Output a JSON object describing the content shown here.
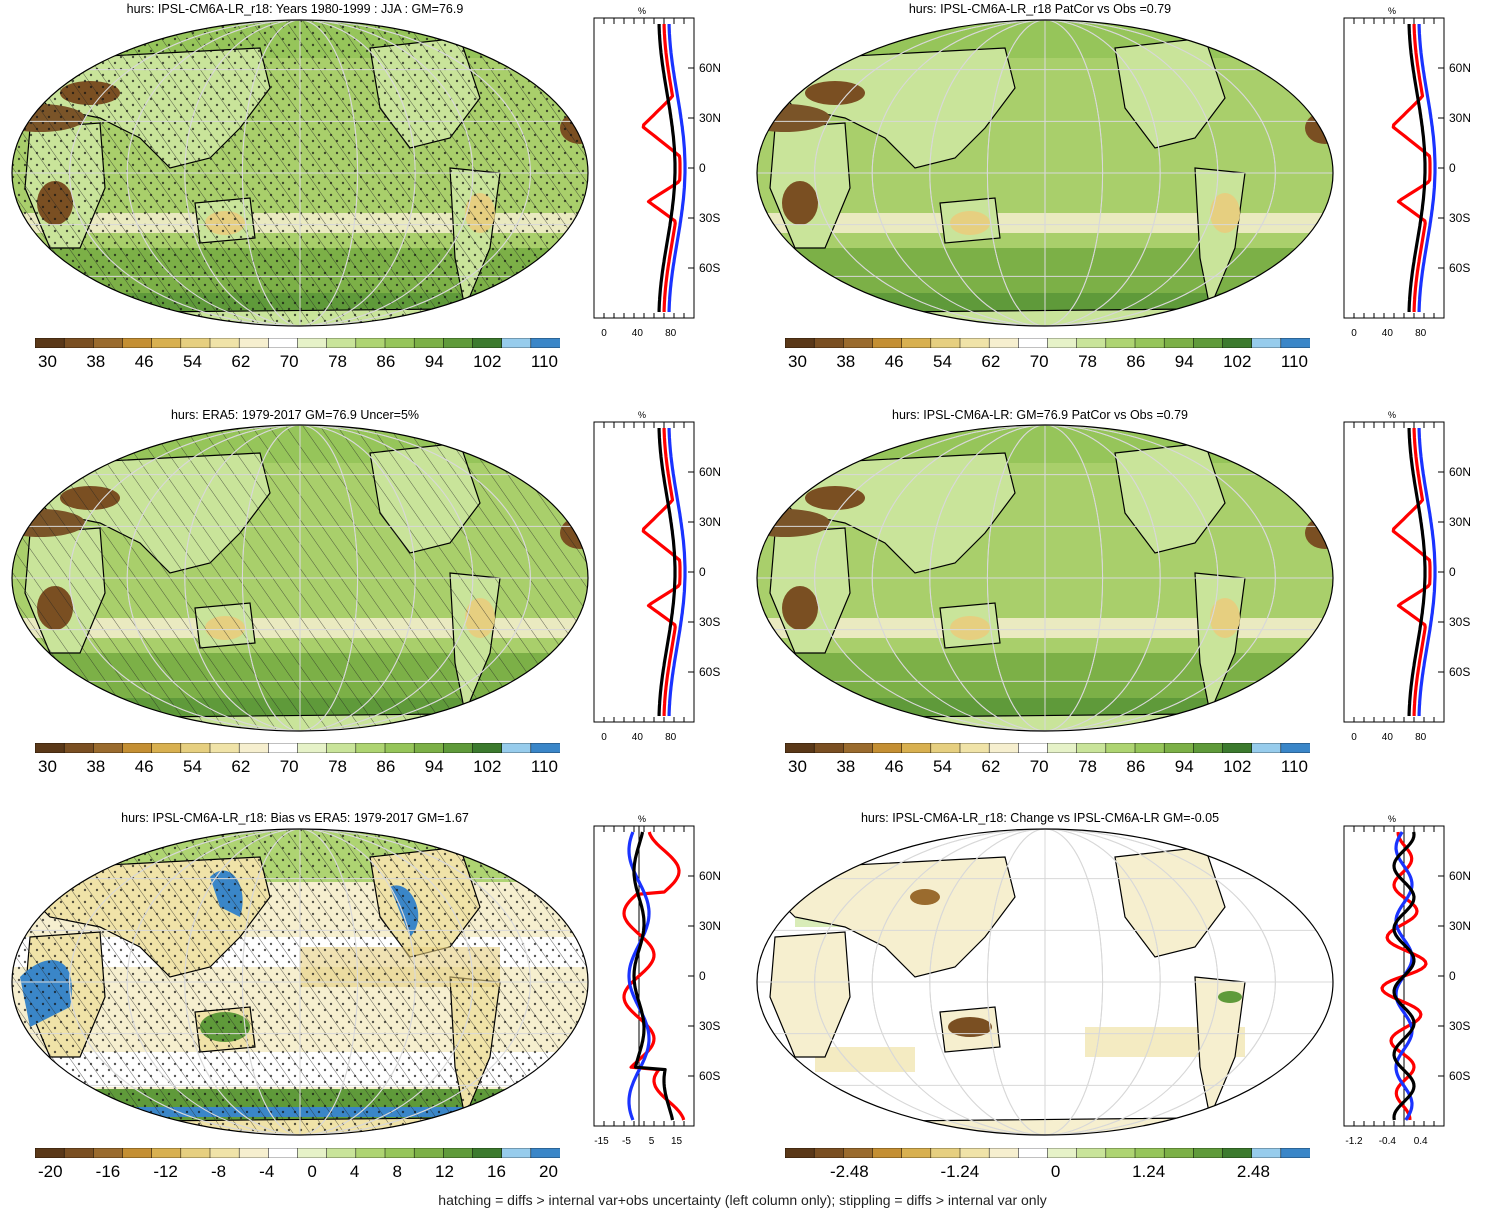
{
  "colors": {
    "pos_palette": [
      "#5a3818",
      "#7a4f22",
      "#9a6b2e",
      "#c48f33",
      "#d8b050",
      "#e6cf80",
      "#f0e3a8",
      "#f6efcf",
      "#ffffff",
      "#e6f2c8",
      "#c9e49a",
      "#aed472",
      "#96c55a",
      "#7cb047",
      "#5f9a3a",
      "#3c7a2e",
      "#97ccec",
      "#3a86c8"
    ],
    "ocean": "#a9cf6b",
    "land_dry": "#7a5428",
    "model_line": "#000000",
    "obs_line": "#ff0000",
    "ref_line": "#1a33ff"
  },
  "panels": [
    {
      "id": "p1",
      "title": "hurs: IPSL-CM6A-LR_r18: Years 1980-1999 : JJA : GM=76.9",
      "cbar_labels": [
        "30",
        "38",
        "46",
        "54",
        "62",
        "70",
        "78",
        "86",
        "94",
        "102",
        "110"
      ],
      "profile_xticks": [
        "0",
        "40",
        "80"
      ],
      "profile_unit": "%",
      "lat_labels": [
        "60N",
        "30N",
        "0",
        "30S",
        "60S"
      ],
      "kind": "abs"
    },
    {
      "id": "p2",
      "title": "hurs: IPSL-CM6A-LR_r18 PatCor vs Obs =0.79",
      "cbar_labels": [
        "30",
        "38",
        "46",
        "54",
        "62",
        "70",
        "78",
        "86",
        "94",
        "102",
        "110"
      ],
      "profile_xticks": [
        "0",
        "40",
        "80"
      ],
      "profile_unit": "%",
      "lat_labels": [
        "60N",
        "30N",
        "0",
        "30S",
        "60S"
      ],
      "kind": "abs"
    },
    {
      "id": "p3",
      "title": "hurs: ERA5: 1979-2017 GM=76.9 Uncer=5%",
      "cbar_labels": [
        "30",
        "38",
        "46",
        "54",
        "62",
        "70",
        "78",
        "86",
        "94",
        "102",
        "110"
      ],
      "profile_xticks": [
        "0",
        "40",
        "80"
      ],
      "profile_unit": "%",
      "lat_labels": [
        "60N",
        "30N",
        "0",
        "30S",
        "60S"
      ],
      "kind": "abs"
    },
    {
      "id": "p4",
      "title": "hurs: IPSL-CM6A-LR: GM=76.9 PatCor vs Obs =0.79",
      "cbar_labels": [
        "30",
        "38",
        "46",
        "54",
        "62",
        "70",
        "78",
        "86",
        "94",
        "102",
        "110"
      ],
      "profile_xticks": [
        "0",
        "40",
        "80"
      ],
      "profile_unit": "%",
      "lat_labels": [
        "60N",
        "30N",
        "0",
        "30S",
        "60S"
      ],
      "kind": "abs"
    },
    {
      "id": "p5",
      "title": "hurs: IPSL-CM6A-LR_r18: Bias vs ERA5: 1979-2017 GM=1.67",
      "cbar_labels": [
        "-20",
        "-16",
        "-12",
        "-8",
        "-4",
        "0",
        "4",
        "8",
        "12",
        "16",
        "20"
      ],
      "profile_xticks": [
        "-15",
        "-5",
        "5",
        "15"
      ],
      "profile_unit": "%",
      "lat_labels": [
        "60N",
        "30N",
        "0",
        "30S",
        "60S"
      ],
      "kind": "bias"
    },
    {
      "id": "p6",
      "title": "hurs: IPSL-CM6A-LR_r18: Change vs IPSL-CM6A-LR GM=-0.05",
      "cbar_labels": [
        "-2.48",
        "-1.24",
        "0",
        "1.24",
        "2.48"
      ],
      "profile_xticks": [
        "-1.2",
        "-0.4",
        "0.4"
      ],
      "profile_unit": "%",
      "lat_labels": [
        "60N",
        "30N",
        "0",
        "30S",
        "60S"
      ],
      "kind": "change"
    }
  ],
  "footer": "hatching = diffs > internal var+obs uncertainty (left column only); stippling = diffs > internal var only"
}
